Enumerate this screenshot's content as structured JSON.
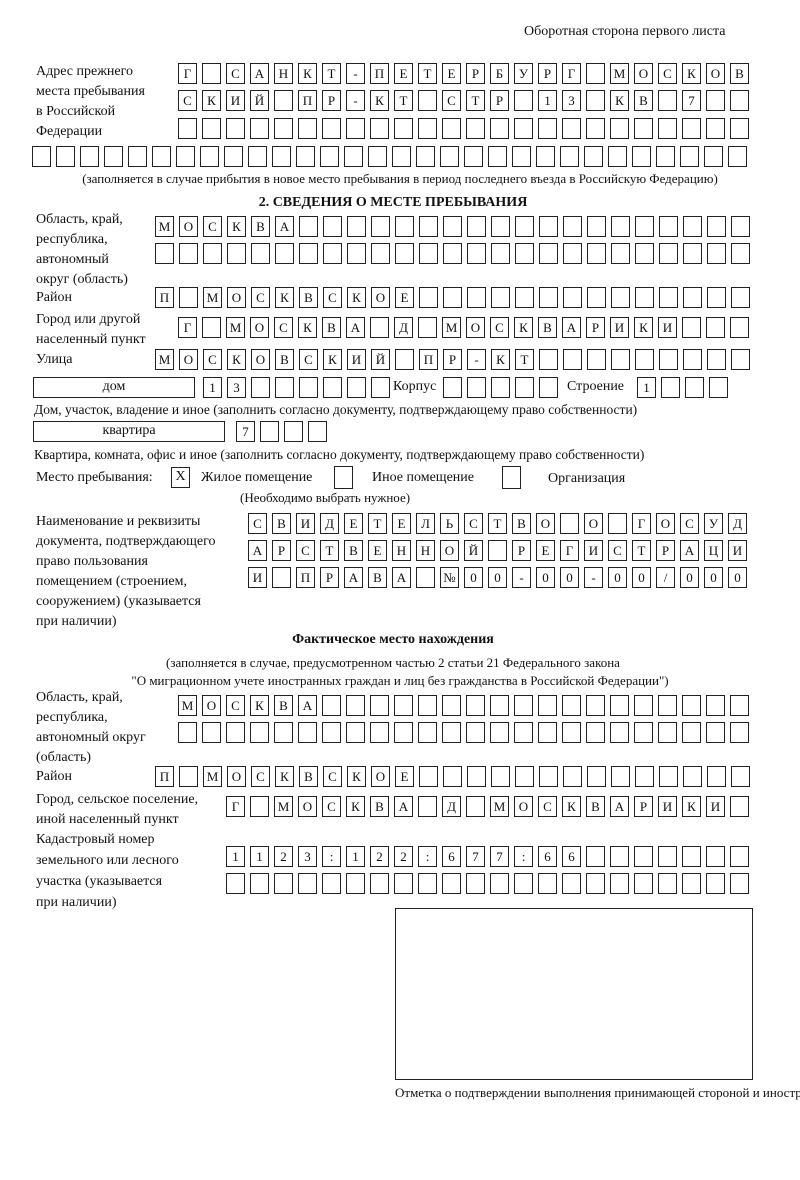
{
  "header": {
    "page_side": "Оборотная сторона первого листа"
  },
  "prev_address": {
    "label": "Адрес прежнего\nместа пребывания\nв Российской\nФедерации",
    "rows": [
      [
        "Г",
        "",
        "С",
        "А",
        "Н",
        "К",
        "Т",
        "-",
        "П",
        "Е",
        "Т",
        "Е",
        "Р",
        "Б",
        "У",
        "Р",
        "Г",
        "",
        "М",
        "О",
        "С",
        "К",
        "О",
        "В"
      ],
      [
        "С",
        "К",
        "И",
        "Й",
        "",
        "П",
        "Р",
        "-",
        "К",
        "Т",
        "",
        "С",
        "Т",
        "Р",
        "",
        "1",
        "3",
        "",
        "К",
        "В",
        "",
        "7",
        "",
        ""
      ],
      [
        "",
        "",
        "",
        "",
        "",
        "",
        "",
        "",
        "",
        "",
        "",
        "",
        "",
        "",
        "",
        "",
        "",
        "",
        "",
        "",
        "",
        "",
        "",
        ""
      ],
      [
        "",
        "",
        "",
        "",
        "",
        "",
        "",
        "",
        "",
        "",
        "",
        "",
        "",
        "",
        "",
        "",
        "",
        "",
        "",
        "",
        "",
        "",
        "",
        "",
        "",
        "",
        "",
        "",
        "",
        ""
      ]
    ],
    "note": "(заполняется в случае прибытия в новое место пребывания в период последнего въезда в Российскую Федерацию)"
  },
  "section2": {
    "title": "2. СВЕДЕНИЯ О МЕСТЕ ПРЕБЫВАНИЯ",
    "region_label": "Область, край,\nреспублика,\nавтономный\nокруг (область)",
    "region_rows": [
      [
        "М",
        "О",
        "С",
        "К",
        "В",
        "А",
        "",
        "",
        "",
        "",
        "",
        "",
        "",
        "",
        "",
        "",
        "",
        "",
        "",
        "",
        "",
        "",
        "",
        "",
        ""
      ],
      [
        "",
        "",
        "",
        "",
        "",
        "",
        "",
        "",
        "",
        "",
        "",
        "",
        "",
        "",
        "",
        "",
        "",
        "",
        "",
        "",
        "",
        "",
        "",
        "",
        ""
      ]
    ],
    "district_label": "Район",
    "district": [
      "П",
      "",
      "М",
      "О",
      "С",
      "К",
      "В",
      "С",
      "К",
      "О",
      "Е",
      "",
      "",
      "",
      "",
      "",
      "",
      "",
      "",
      "",
      "",
      "",
      "",
      "",
      ""
    ],
    "city_label": "Город или другой\nнаселенный пункт",
    "city": [
      "Г",
      "",
      "М",
      "О",
      "С",
      "К",
      "В",
      "А",
      "",
      "Д",
      "",
      "М",
      "О",
      "С",
      "К",
      "В",
      "А",
      "Р",
      "И",
      "К",
      "И",
      "",
      "",
      ""
    ],
    "street_label": "Улица",
    "street": [
      "М",
      "О",
      "С",
      "К",
      "О",
      "В",
      "С",
      "К",
      "И",
      "Й",
      "",
      "П",
      "Р",
      "-",
      "К",
      "Т",
      "",
      "",
      "",
      "",
      "",
      "",
      "",
      "",
      ""
    ],
    "house_type": "дом",
    "house": [
      "1",
      "3",
      "",
      "",
      "",
      "",
      "",
      ""
    ],
    "korpus_label": "Корпус",
    "korpus": [
      "",
      "",
      "",
      "",
      ""
    ],
    "building_label": "Строение",
    "building": [
      "1",
      "",
      "",
      ""
    ],
    "house_note": "Дом, участок, владение и иное (заполнить согласно документу, подтверждающему право собственности)",
    "apt_type": "квартира",
    "apt": [
      "7",
      "",
      "",
      ""
    ],
    "apt_note": "Квартира, комната, офис и иное (заполнить согласно документу, подтверждающему право собственности)",
    "place_label": "Место пребывания:",
    "options": [
      {
        "label": "Жилое помещение",
        "mark": "X"
      },
      {
        "label": "Иное помещение",
        "mark": ""
      },
      {
        "label": "Организация",
        "mark": ""
      }
    ],
    "place_hint": "(Необходимо выбрать нужное)",
    "doc_label": "Наименование и реквизиты\nдокумента, подтверждающего\nправо пользования\nпомещением (строением,\nсооружением) (указывается\nпри наличии)",
    "doc_rows": [
      [
        "С",
        "В",
        "И",
        "Д",
        "Е",
        "Т",
        "Е",
        "Л",
        "Ь",
        "С",
        "Т",
        "В",
        "О",
        "",
        "О",
        "",
        "Г",
        "О",
        "С",
        "У",
        "Д"
      ],
      [
        "А",
        "Р",
        "С",
        "Т",
        "В",
        "Е",
        "Н",
        "Н",
        "О",
        "Й",
        "",
        "Р",
        "Е",
        "Г",
        "И",
        "С",
        "Т",
        "Р",
        "А",
        "Ц",
        "И"
      ],
      [
        "И",
        "",
        "П",
        "Р",
        "А",
        "В",
        "А",
        "",
        "№",
        "0",
        "0",
        "-",
        "0",
        "0",
        "-",
        "0",
        "0",
        "/",
        "0",
        "0",
        "0"
      ]
    ]
  },
  "actual": {
    "title": "Фактическое место нахождения",
    "subtitle_1": "(заполняется в случае, предусмотренном частью 2 статьи 21 Федерального закона",
    "subtitle_2": "\"О миграционном учете иностранных граждан и лиц без гражданства в Российской Федерации\")",
    "region_label": "Область, край,\nреспублика,\nавтономный округ\n(область)",
    "region_rows": [
      [
        "М",
        "О",
        "С",
        "К",
        "В",
        "А",
        "",
        "",
        "",
        "",
        "",
        "",
        "",
        "",
        "",
        "",
        "",
        "",
        "",
        "",
        "",
        "",
        "",
        ""
      ],
      [
        "",
        "",
        "",
        "",
        "",
        "",
        "",
        "",
        "",
        "",
        "",
        "",
        "",
        "",
        "",
        "",
        "",
        "",
        "",
        "",
        "",
        "",
        "",
        ""
      ]
    ],
    "district_label": "Район",
    "district": [
      "П",
      "",
      "М",
      "О",
      "С",
      "К",
      "В",
      "С",
      "К",
      "О",
      "Е",
      "",
      "",
      "",
      "",
      "",
      "",
      "",
      "",
      "",
      "",
      "",
      "",
      "",
      ""
    ],
    "city_label": "Город, сельское поселение,\nиной населенный пункт",
    "city": [
      "Г",
      "",
      "М",
      "О",
      "С",
      "К",
      "В",
      "А",
      "",
      "Д",
      "",
      "М",
      "О",
      "С",
      "К",
      "В",
      "А",
      "Р",
      "И",
      "К",
      "И",
      ""
    ],
    "cadastral_label": "Кадастровый номер\nземельного или лесного\nучастка (указывается\nпри наличии)",
    "cadastral_rows": [
      [
        "1",
        "1",
        "2",
        "3",
        ":",
        "1",
        "2",
        "2",
        ":",
        "6",
        "7",
        "7",
        ":",
        "6",
        "6",
        "",
        "",
        "",
        "",
        "",
        "",
        ""
      ],
      [
        "",
        "",
        "",
        "",
        "",
        "",
        "",
        "",
        "",
        "",
        "",
        "",
        "",
        "",
        "",
        "",
        "",
        "",
        "",
        "",
        "",
        ""
      ]
    ]
  },
  "stamp": {
    "caption": "Отметка о подтверждении выполнения принимающей\nстороной и иностранным гражданином или лицом без\nгражданства действий, необходимых для его постановки\nна учет по месту пребывания"
  }
}
